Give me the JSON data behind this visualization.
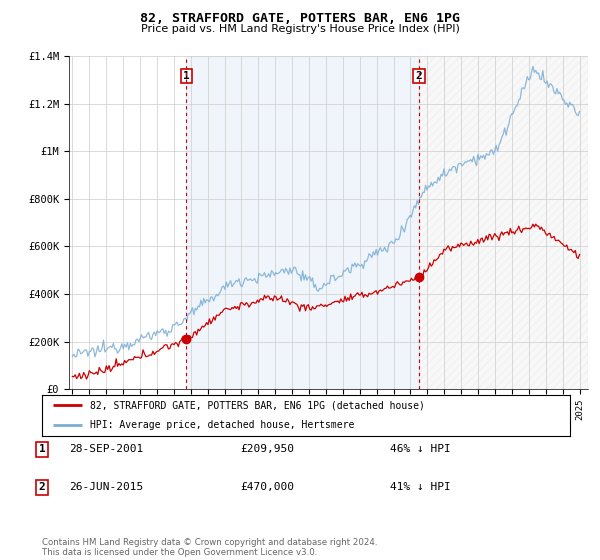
{
  "title": "82, STRAFFORD GATE, POTTERS BAR, EN6 1PG",
  "subtitle": "Price paid vs. HM Land Registry's House Price Index (HPI)",
  "hpi_color": "#7aadd4",
  "price_color": "#cc0000",
  "hpi_fill_color": "#ddeeff",
  "marker1_date": 2001.75,
  "marker1_price": 209950,
  "marker2_date": 2015.49,
  "marker2_price": 470000,
  "ylim": [
    0,
    1400000
  ],
  "xlim": [
    1994.8,
    2025.5
  ],
  "yticks": [
    0,
    200000,
    400000,
    600000,
    800000,
    1000000,
    1200000,
    1400000
  ],
  "yticklabels": [
    "£0",
    "£200K",
    "£400K",
    "£600K",
    "£800K",
    "£1M",
    "£1.2M",
    "£1.4M"
  ],
  "legend_label_price": "82, STRAFFORD GATE, POTTERS BAR, EN6 1PG (detached house)",
  "legend_label_hpi": "HPI: Average price, detached house, Hertsmere",
  "note1_label": "1",
  "note1_date": "28-SEP-2001",
  "note1_price": "£209,950",
  "note1_pct": "46% ↓ HPI",
  "note2_label": "2",
  "note2_date": "26-JUN-2015",
  "note2_price": "£470,000",
  "note2_pct": "41% ↓ HPI",
  "footer": "Contains HM Land Registry data © Crown copyright and database right 2024.\nThis data is licensed under the Open Government Licence v3.0."
}
